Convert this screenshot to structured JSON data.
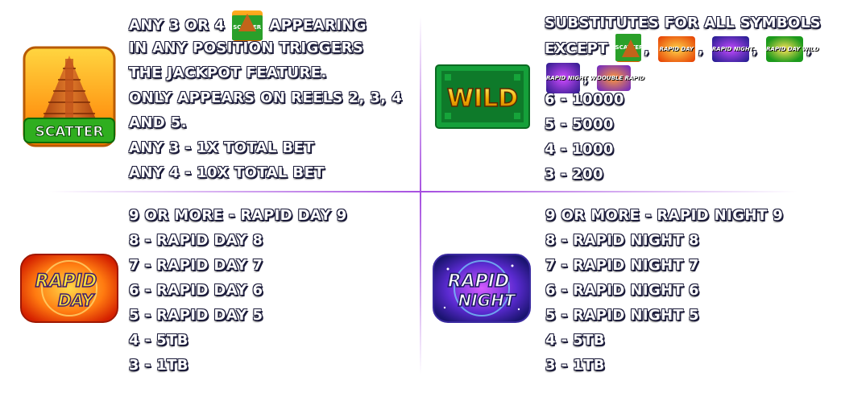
{
  "scatter": {
    "intro": "ANY 3 OR 4",
    "intro_suffix": "APPEARING",
    "icon_label": "SCATTER",
    "lines": [
      "IN ANY POSITION TRIGGERS",
      "THE JACKPOT FEATURE.",
      "ONLY APPEARS ON REELS 2, 3, 4",
      "AND 5.",
      "ANY 3 - 1X TOTAL BET",
      "ANY 4 - 10X TOTAL BET"
    ]
  },
  "wild": {
    "symbol_label": "WILD",
    "line1": "SUBSTITUTES FOR ALL SYMBOLS",
    "except_label": "EXCEPT",
    "except_icons": [
      {
        "name": "scatter",
        "text": "SCATTER"
      },
      {
        "name": "rapid-day",
        "text": "RAPID DAY"
      },
      {
        "name": "rapid-night",
        "text": "RAPID NIGHT"
      },
      {
        "name": "rapid-day-wild",
        "text": "RAPID DAY WILD"
      },
      {
        "name": "rapid-night-wild",
        "text": "RAPID NIGHT WILD"
      },
      {
        "name": "double-rapid",
        "text": "DOUBLE RAPID"
      }
    ],
    "separator": ",",
    "pays": [
      "6 - 10000",
      "5 - 5000",
      "4 - 1000",
      "3 - 200"
    ]
  },
  "rapid_day": {
    "symbol_text_1": "RAPID",
    "symbol_text_2": "DAY",
    "lines": [
      "9 OR MORE - RAPID DAY 9",
      "8 - RAPID DAY 8",
      "7 - RAPID DAY 7",
      "6 - RAPID DAY 6",
      "5 - RAPID DAY 5",
      "4 - 5TB",
      "3 - 1TB"
    ]
  },
  "rapid_night": {
    "symbol_text_1": "RAPID",
    "symbol_text_2": "NIGHT",
    "lines": [
      "9 OR MORE - RAPID NIGHT 9",
      "8 - RAPID NIGHT 8",
      "7 - RAPID NIGHT 7",
      "6 - RAPID NIGHT 6",
      "5 - RAPID NIGHT 5",
      "4 - 5TB",
      "3 - 1TB"
    ]
  },
  "colors": {
    "divider": "#a64fe0",
    "text": "#ffffff",
    "text_outline": "#1b1b3a"
  }
}
